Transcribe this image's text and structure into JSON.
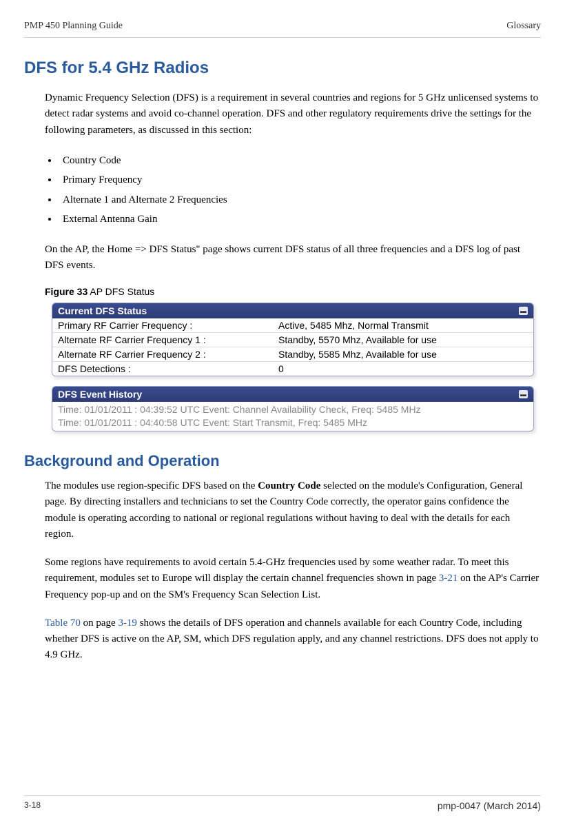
{
  "header": {
    "left": "PMP 450 Planning Guide",
    "right": "Glossary"
  },
  "title": "DFS for 5.4 GHz Radios",
  "intro": "Dynamic Frequency Selection (DFS) is a requirement in several countries and regions for 5 GHz unlicensed systems to detect radar systems and avoid co-channel operation. DFS and other regulatory requirements drive the settings for the following parameters, as discussed in this section:",
  "bullets": {
    "b1": "Country Code",
    "b2": "Primary Frequency",
    "b3": "Alternate 1 and Alternate 2 Frequencies",
    "b4": "External Antenna Gain"
  },
  "after_bullets": "On the AP, the Home => DFS Status\" page shows current DFS status of all three frequencies and a DFS log of past DFS events.",
  "figure": {
    "num": "Figure 33",
    "label": " AP DFS Status"
  },
  "dfs_panel": {
    "title": "Current DFS Status",
    "rows": {
      "r0": {
        "label": "Primary RF Carrier Frequency :",
        "value": "Active, 5485 Mhz, Normal Transmit"
      },
      "r1": {
        "label": "Alternate RF Carrier Frequency 1 :",
        "value": "Standby, 5570 Mhz, Available for use"
      },
      "r2": {
        "label": "Alternate RF Carrier Frequency 2 :",
        "value": "Standby, 5585 Mhz, Available for use"
      },
      "r3": {
        "label": "DFS Detections :",
        "value": "0"
      }
    }
  },
  "history_panel": {
    "title": "DFS Event History",
    "line1": "Time: 01/01/2011 : 04:39:52 UTC Event: Channel Availability Check, Freq: 5485 MHz",
    "line2": "Time: 01/01/2011 : 04:40:58 UTC Event: Start Transmit, Freq: 5485 MHz"
  },
  "bg_heading": "Background and Operation",
  "bg_p1_a": "The modules use region-specific DFS based on the ",
  "bg_p1_bold": "Country Code",
  "bg_p1_b": " selected on the module's Configuration, General page.  By directing installers and technicians to set the Country Code correctly, the operator gains confidence the module is operating according to national or regional regulations without having to deal with the details for each region.",
  "bg_p2_a": "Some regions have requirements to avoid certain 5.4-GHz frequencies used by some weather radar. To meet this requirement, modules set to Europe will display the certain channel frequencies shown in page ",
  "bg_p2_link": "3-21",
  "bg_p2_b": " on the AP's Carrier Frequency pop-up and on the SM's Frequency Scan Selection List.",
  "bg_p3_link1": "Table 70",
  "bg_p3_a": " on page ",
  "bg_p3_link2": "3-19",
  "bg_p3_b": " shows the details of DFS operation and channels available for each Country Code, including whether DFS is active on the AP, SM, which DFS regulation apply, and any channel restrictions. DFS does not apply to 4.9 GHz.",
  "footer": {
    "left": "3-18",
    "right": "pmp-0047 (March 2014)"
  }
}
